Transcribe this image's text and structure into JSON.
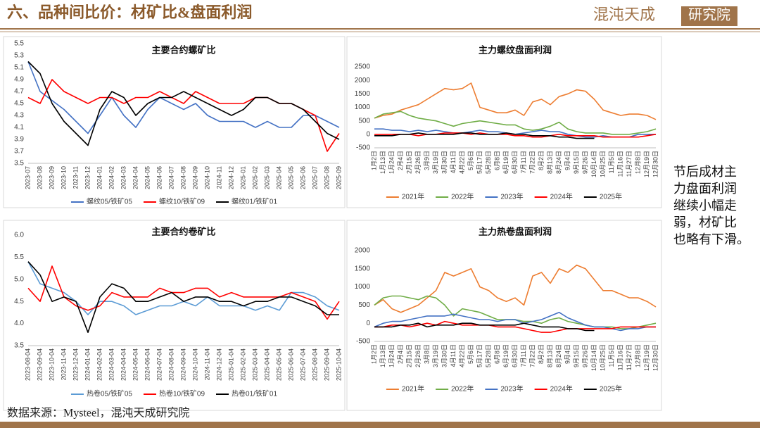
{
  "header": {
    "title": "六、品种间比价：材矿比&盘面利润",
    "logo_script": "混沌天成",
    "logo_box": "研究院"
  },
  "side_note": [
    "节后成材主",
    "力盘面利润",
    "继续小幅走",
    "弱，材矿比",
    "也略有下滑。"
  ],
  "source": "数据来源：Mysteel，混沌天成研究院",
  "chart_data": [
    {
      "type": "line",
      "title": "主要合约螺矿比",
      "categories": [
        "2023-07",
        "2023-08",
        "2023-09",
        "2023-10",
        "2023-11",
        "2023-12",
        "2024-01",
        "2024-02",
        "2024-03",
        "2024-04",
        "2024-05",
        "2024-06",
        "2024-07",
        "2024-08",
        "2024-09",
        "2024-10",
        "2024-11",
        "2024-12",
        "2025-01",
        "2025-02",
        "2025-03",
        "2025-04",
        "2025-05",
        "2025-06",
        "2025-07",
        "2025-08",
        "2025-09"
      ],
      "ylim": [
        3.5,
        5.5
      ],
      "yticks": [
        3.5,
        3.7,
        3.9,
        4.1,
        4.3,
        4.5,
        4.7,
        4.9,
        5.1,
        5.3,
        5.5
      ],
      "grid": false,
      "series": [
        {
          "name": "螺纹05/铁矿05",
          "color": "#4472c4",
          "values": [
            5.2,
            4.7,
            4.55,
            4.4,
            4.2,
            4.0,
            4.3,
            4.6,
            4.3,
            4.1,
            4.4,
            4.6,
            4.5,
            4.4,
            4.5,
            4.3,
            4.2,
            4.2,
            4.2,
            4.1,
            4.2,
            4.1,
            4.1,
            4.3,
            4.3,
            4.2,
            4.1
          ]
        },
        {
          "name": "螺纹10/铁矿09",
          "color": "#ff0000",
          "values": [
            4.6,
            4.5,
            4.9,
            4.7,
            4.6,
            4.5,
            4.6,
            4.6,
            4.5,
            4.6,
            4.6,
            4.7,
            4.6,
            4.5,
            4.7,
            4.6,
            4.5,
            4.5,
            4.5,
            4.6,
            4.6,
            4.5,
            4.5,
            4.4,
            4.3,
            3.7,
            4.0
          ]
        },
        {
          "name": "螺纹01/铁矿01",
          "color": "#000000",
          "values": [
            5.2,
            5.0,
            4.5,
            4.2,
            4.0,
            3.8,
            4.4,
            4.7,
            4.6,
            4.3,
            4.5,
            4.6,
            4.6,
            4.7,
            4.6,
            4.5,
            4.4,
            4.3,
            4.4,
            4.6,
            4.6,
            4.5,
            4.5,
            4.4,
            4.2,
            4.0,
            3.9
          ]
        }
      ]
    },
    {
      "type": "line",
      "title": "主力螺纹盘面利润",
      "categories": [
        "1月2日",
        "1月13日",
        "1月24日",
        "2月4日",
        "2月15日",
        "2月26日",
        "3月9日",
        "3月19日",
        "3月30日",
        "4月11日",
        "4月22日",
        "5月6日",
        "5月17日",
        "5月28日",
        "6月8日",
        "6月19日",
        "6月30日",
        "7月11日",
        "7月22日",
        "8月2日",
        "8月13日",
        "8月24日",
        "9月4日",
        "9月15日",
        "9月26日",
        "10月14日",
        "10月25日",
        "11月5日",
        "11月16日",
        "11月27日",
        "12月8日",
        "12月19日",
        "12月30日"
      ],
      "ylim": [
        -500,
        2500
      ],
      "yticks": [
        -500,
        0,
        500,
        1000,
        1500,
        2000,
        2500
      ],
      "grid": false,
      "series": [
        {
          "name": "2021年",
          "color": "#ed7d31",
          "values": [
            600,
            700,
            750,
            900,
            1000,
            1100,
            1300,
            1500,
            1700,
            1650,
            1700,
            1900,
            1000,
            900,
            800,
            800,
            900,
            700,
            1200,
            1300,
            1100,
            1400,
            1500,
            1650,
            1600,
            1300,
            900,
            800,
            700,
            750,
            750,
            700,
            550
          ]
        },
        {
          "name": "2022年",
          "color": "#70ad47",
          "values": [
            600,
            750,
            800,
            850,
            700,
            600,
            550,
            500,
            400,
            300,
            400,
            450,
            500,
            450,
            400,
            350,
            350,
            200,
            150,
            200,
            300,
            450,
            200,
            100,
            50,
            50,
            50,
            0,
            0,
            0,
            50,
            100,
            200
          ]
        },
        {
          "name": "2023年",
          "color": "#4472c4",
          "values": [
            200,
            200,
            150,
            150,
            100,
            150,
            100,
            150,
            100,
            50,
            50,
            100,
            150,
            100,
            100,
            50,
            0,
            50,
            100,
            150,
            100,
            100,
            0,
            -50,
            -100,
            -100,
            -50,
            -100,
            -100,
            -100,
            0,
            0,
            0
          ]
        },
        {
          "name": "2024年",
          "color": "#ff0000",
          "values": [
            0,
            0,
            0,
            0,
            0,
            -50,
            0,
            0,
            50,
            50,
            50,
            0,
            50,
            0,
            0,
            0,
            -50,
            -50,
            -100,
            -100,
            -50,
            0,
            -50,
            -50,
            -50,
            -50,
            -100,
            -100,
            -100,
            -100,
            -100,
            -50,
            0
          ]
        },
        {
          "name": "2025年",
          "color": "#000000",
          "values": [
            -50,
            -50,
            -50,
            0,
            0,
            50,
            0,
            0,
            0,
            0,
            50,
            50,
            0,
            0,
            0,
            50,
            0,
            0,
            -50,
            -50,
            -50,
            -100,
            -100,
            -150,
            -150,
            -150,
            null,
            null,
            null,
            null,
            null,
            null,
            null
          ]
        }
      ]
    },
    {
      "type": "line",
      "title": "主要合约卷矿比",
      "categories": [
        "2023-08-04",
        "2023-09-04",
        "2023-10-04",
        "2023-11-04",
        "2023-12-04",
        "2024-01-04",
        "2024-02-04",
        "2024-03-04",
        "2024-04-04",
        "2024-05-04",
        "2024-06-04",
        "2024-07-04",
        "2024-08-04",
        "2024-09-04",
        "2024-10-04",
        "2024-11-04",
        "2024-12-04",
        "2025-01-04",
        "2025-02-04",
        "2025-03-04",
        "2025-04-04",
        "2025-05-04",
        "2025-06-04",
        "2025-07-04",
        "2025-08-04",
        "2025-09-04",
        "2025-10-04"
      ],
      "ylim": [
        3.5,
        6
      ],
      "yticks": [
        3.5,
        {
          "value": 4,
          "label": "4.0"
        },
        4.5,
        {
          "value": 5,
          "label": "5.0"
        },
        5.5,
        {
          "value": 6,
          "label": "6.0"
        }
      ],
      "grid": false,
      "series": [
        {
          "name": "热卷05/铁矿05",
          "color": "#5b9bd5",
          "values": [
            5.4,
            4.9,
            4.8,
            4.7,
            4.5,
            4.2,
            4.5,
            4.5,
            4.4,
            4.2,
            4.3,
            4.4,
            4.4,
            4.5,
            4.4,
            4.6,
            4.4,
            4.4,
            4.4,
            4.3,
            4.4,
            4.3,
            4.7,
            4.7,
            4.6,
            4.4,
            4.3
          ]
        },
        {
          "name": "热卷10/铁矿09",
          "color": "#ff0000",
          "values": [
            4.8,
            4.5,
            5.3,
            4.6,
            4.4,
            4.3,
            4.4,
            4.7,
            4.6,
            4.6,
            4.6,
            4.8,
            4.7,
            4.7,
            4.8,
            4.8,
            4.6,
            4.7,
            4.6,
            4.6,
            4.6,
            4.6,
            4.7,
            4.6,
            4.5,
            4.1,
            4.5
          ]
        },
        {
          "name": "热卷01/铁矿01",
          "color": "#000000",
          "values": [
            5.4,
            5.1,
            4.5,
            4.6,
            4.5,
            3.8,
            4.6,
            4.9,
            4.8,
            4.5,
            4.5,
            4.6,
            4.7,
            4.5,
            4.6,
            4.6,
            4.5,
            4.5,
            4.4,
            4.5,
            4.5,
            4.6,
            4.6,
            4.5,
            4.4,
            4.2,
            4.2
          ]
        }
      ]
    },
    {
      "type": "line",
      "title": "主力热卷盘面利润",
      "categories": [
        "1月2日",
        "1月13日",
        "1月24日",
        "2月4日",
        "2月15日",
        "2月26日",
        "3月8日",
        "3月19日",
        "3月30日",
        "4月11日",
        "4月22日",
        "5月6日",
        "5月17日",
        "5月28日",
        "6月8日",
        "6月19日",
        "6月30日",
        "7月11日",
        "7月22日",
        "8月2日",
        "8月13日",
        "8月24日",
        "9月4日",
        "9月15日",
        "9月26日",
        "10月14日",
        "10月25日",
        "11月5日",
        "11月16日",
        "11月27日",
        "12月8日",
        "12月19日",
        "12月30日"
      ],
      "ylim": [
        -500,
        2000
      ],
      "yticks": [
        -500,
        0,
        500,
        1000,
        1500,
        2000
      ],
      "grid": false,
      "series": [
        {
          "name": "2021年",
          "color": "#ed7d31",
          "values": [
            500,
            650,
            400,
            300,
            400,
            500,
            700,
            900,
            1400,
            1300,
            1400,
            1500,
            1000,
            900,
            700,
            600,
            700,
            500,
            1300,
            1400,
            1100,
            1500,
            1400,
            1600,
            1500,
            1200,
            900,
            900,
            800,
            700,
            700,
            600,
            450
          ]
        },
        {
          "name": "2022年",
          "color": "#70ad47",
          "values": [
            500,
            700,
            750,
            750,
            700,
            650,
            750,
            700,
            500,
            200,
            400,
            350,
            300,
            200,
            100,
            100,
            100,
            50,
            50,
            0,
            100,
            150,
            50,
            0,
            -50,
            -100,
            -100,
            -100,
            -150,
            -150,
            -100,
            -50,
            0
          ]
        },
        {
          "name": "2023年",
          "color": "#4472c4",
          "values": [
            -100,
            0,
            50,
            50,
            100,
            150,
            200,
            200,
            200,
            250,
            200,
            150,
            100,
            100,
            50,
            100,
            100,
            0,
            50,
            100,
            200,
            300,
            150,
            50,
            -50,
            -100,
            -100,
            -150,
            -200,
            -150,
            -150,
            -100,
            -100
          ]
        },
        {
          "name": "2024年",
          "color": "#ff0000",
          "values": [
            -100,
            -100,
            -50,
            -50,
            -100,
            -50,
            0,
            -50,
            50,
            0,
            -50,
            -50,
            -50,
            -50,
            -100,
            -100,
            -100,
            -150,
            -200,
            -250,
            -250,
            -200,
            -150,
            -150,
            -150,
            -150,
            -150,
            -150,
            -100,
            -100,
            -100,
            -100,
            -100
          ]
        },
        {
          "name": "2025年",
          "color": "#000000",
          "values": [
            -100,
            -100,
            -100,
            -50,
            -50,
            0,
            -100,
            -50,
            -50,
            -50,
            0,
            0,
            -50,
            -50,
            -50,
            -50,
            -50,
            0,
            -50,
            -100,
            -100,
            -100,
            -150,
            -150,
            -200,
            -200,
            null,
            null,
            null,
            null,
            null,
            null,
            null
          ]
        }
      ]
    }
  ]
}
